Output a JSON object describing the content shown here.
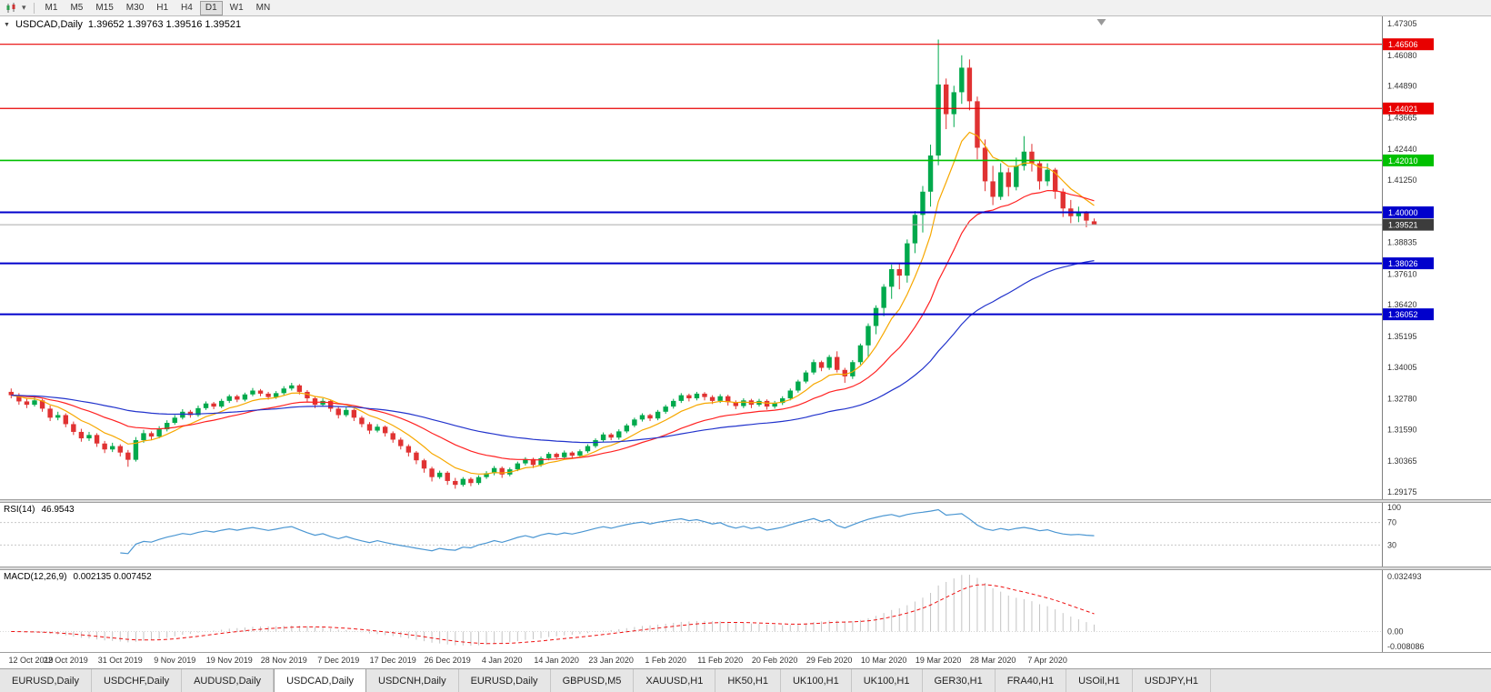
{
  "toolbar": {
    "timeframes": [
      "M1",
      "M5",
      "M15",
      "M30",
      "H1",
      "H4",
      "D1",
      "W1",
      "MN"
    ],
    "active": "D1"
  },
  "chart": {
    "title": "USDCAD,Daily",
    "ohlc": "1.39652 1.39763 1.39516 1.39521"
  },
  "chart_data": {
    "type": "candlestick",
    "symbol": "USDCAD",
    "timeframe": "Daily",
    "open": 1.39652,
    "high": 1.39763,
    "low": 1.39516,
    "close": 1.39521,
    "price_range": [
      1.29175,
      1.47305
    ],
    "axis_labels": [
      1.47305,
      1.4608,
      1.4489,
      1.43665,
      1.4244,
      1.4125,
      1.38835,
      1.3761,
      1.3642,
      1.35195,
      1.34005,
      1.3278,
      1.3159,
      1.30365,
      1.29175
    ],
    "colors": {
      "up": "#00a94c",
      "down": "#e03232"
    },
    "hlines": [
      {
        "value": 1.46506,
        "label": "1.46506",
        "color": "#e80000",
        "width": 1.2
      },
      {
        "value": 1.44021,
        "label": "1.44021",
        "color": "#e80000",
        "width": 1.2
      },
      {
        "value": 1.4201,
        "label": "1.42010",
        "color": "#00c000",
        "width": 1.6
      },
      {
        "value": 1.4,
        "label": "1.40000",
        "color": "#0000cc",
        "width": 2
      },
      {
        "value": 1.38026,
        "label": "1.38026",
        "color": "#0000cc",
        "width": 2
      },
      {
        "value": 1.36052,
        "label": "1.36052",
        "color": "#0000cc",
        "width": 2
      }
    ],
    "current_price": {
      "value": 1.39521,
      "label": "1.39521",
      "line_color": "#aaaaaa",
      "badge_color": "#3c3c3c"
    },
    "moving_averages": [
      {
        "name": "fast",
        "period": 8,
        "color": "#f7a800"
      },
      {
        "name": "medium",
        "period": 21,
        "color": "#ff2222"
      },
      {
        "name": "slow",
        "period": 55,
        "color": "#2233cc"
      }
    ],
    "label_every": 7,
    "date_labels": [
      "12 Oct 2019",
      "22 Oct 2019",
      "31 Oct 2019",
      "9 Nov 2019",
      "19 Nov 2019",
      "28 Nov 2019",
      "7 Dec 2019",
      "17 Dec 2019",
      "26 Dec 2019",
      "4 Jan 2020",
      "14 Jan 2020",
      "23 Jan 2020",
      "1 Feb 2020",
      "11 Feb 2020",
      "20 Feb 2020",
      "29 Feb 2020",
      "10 Mar 2020",
      "19 Mar 2020",
      "28 Mar 2020",
      "7 Apr 2020"
    ],
    "candles": [
      [
        1.3305,
        1.3318,
        1.328,
        1.3292
      ],
      [
        1.3292,
        1.33,
        1.3255,
        1.3268
      ],
      [
        1.3268,
        1.328,
        1.3242,
        1.3255
      ],
      [
        1.3255,
        1.3285,
        1.3248,
        1.3272
      ],
      [
        1.3272,
        1.3278,
        1.3228,
        1.324
      ],
      [
        1.324,
        1.3252,
        1.3192,
        1.3205
      ],
      [
        1.3205,
        1.3228,
        1.3195,
        1.3215
      ],
      [
        1.3215,
        1.3222,
        1.3168,
        1.318
      ],
      [
        1.318,
        1.319,
        1.3138,
        1.315
      ],
      [
        1.315,
        1.3162,
        1.3112,
        1.3125
      ],
      [
        1.3125,
        1.315,
        1.3115,
        1.3138
      ],
      [
        1.3138,
        1.3145,
        1.3092,
        1.3105
      ],
      [
        1.3105,
        1.3115,
        1.3068,
        1.3082
      ],
      [
        1.3082,
        1.3108,
        1.3072,
        1.3095
      ],
      [
        1.3095,
        1.3102,
        1.3055,
        1.307
      ],
      [
        1.307,
        1.308,
        1.3015,
        1.3042
      ],
      [
        1.3042,
        1.313,
        1.3035,
        1.3118
      ],
      [
        1.3118,
        1.3158,
        1.3108,
        1.3145
      ],
      [
        1.3145,
        1.3152,
        1.3118,
        1.3132
      ],
      [
        1.3132,
        1.3172,
        1.3125,
        1.316
      ],
      [
        1.316,
        1.3195,
        1.3152,
        1.3185
      ],
      [
        1.3185,
        1.3215,
        1.3178,
        1.3205
      ],
      [
        1.3205,
        1.3238,
        1.3198,
        1.3228
      ],
      [
        1.3228,
        1.3235,
        1.3205,
        1.3215
      ],
      [
        1.3215,
        1.3252,
        1.3208,
        1.3242
      ],
      [
        1.3242,
        1.3268,
        1.3235,
        1.326
      ],
      [
        1.326,
        1.3266,
        1.3238,
        1.3248
      ],
      [
        1.3248,
        1.3278,
        1.3242,
        1.327
      ],
      [
        1.327,
        1.3295,
        1.3262,
        1.3288
      ],
      [
        1.3288,
        1.3294,
        1.3265,
        1.3275
      ],
      [
        1.3275,
        1.3302,
        1.3268,
        1.3295
      ],
      [
        1.3295,
        1.332,
        1.3288,
        1.331
      ],
      [
        1.331,
        1.3316,
        1.3288,
        1.3298
      ],
      [
        1.3298,
        1.3305,
        1.3275,
        1.3285
      ],
      [
        1.3285,
        1.3308,
        1.3278,
        1.33
      ],
      [
        1.33,
        1.3327,
        1.3292,
        1.3318
      ],
      [
        1.3318,
        1.334,
        1.331,
        1.333
      ],
      [
        1.333,
        1.3335,
        1.3295,
        1.3305
      ],
      [
        1.3305,
        1.3312,
        1.3268,
        1.328
      ],
      [
        1.328,
        1.3288,
        1.3242,
        1.3255
      ],
      [
        1.3255,
        1.328,
        1.3248,
        1.327
      ],
      [
        1.327,
        1.3275,
        1.3228,
        1.324
      ],
      [
        1.324,
        1.3248,
        1.3202,
        1.3215
      ],
      [
        1.3215,
        1.3245,
        1.3208,
        1.3235
      ],
      [
        1.3235,
        1.324,
        1.3192,
        1.3205
      ],
      [
        1.3205,
        1.3212,
        1.3168,
        1.318
      ],
      [
        1.318,
        1.3188,
        1.3142,
        1.3155
      ],
      [
        1.3155,
        1.318,
        1.3148,
        1.317
      ],
      [
        1.317,
        1.3175,
        1.3132,
        1.3145
      ],
      [
        1.3145,
        1.3152,
        1.3108,
        1.312
      ],
      [
        1.312,
        1.3128,
        1.3082,
        1.3095
      ],
      [
        1.3095,
        1.3102,
        1.3055,
        1.307
      ],
      [
        1.307,
        1.3076,
        1.3025,
        1.304
      ],
      [
        1.304,
        1.3046,
        1.2992,
        1.3008
      ],
      [
        1.3008,
        1.3015,
        1.2958,
        1.2975
      ],
      [
        1.2975,
        1.3,
        1.2968,
        1.2992
      ],
      [
        1.2992,
        1.2998,
        1.2945,
        1.296
      ],
      [
        1.296,
        1.2972,
        1.293,
        1.2945
      ],
      [
        1.2945,
        1.2975,
        1.2938,
        1.2968
      ],
      [
        1.2968,
        1.2974,
        1.294,
        1.2952
      ],
      [
        1.2952,
        1.2982,
        1.2945,
        1.2975
      ],
      [
        1.2975,
        1.2998,
        1.2968,
        1.299
      ],
      [
        1.299,
        1.3018,
        1.2982,
        1.301
      ],
      [
        1.301,
        1.3016,
        1.2972,
        1.2985
      ],
      [
        1.2985,
        1.3012,
        1.2978,
        1.3005
      ],
      [
        1.3005,
        1.3035,
        1.2998,
        1.3028
      ],
      [
        1.3028,
        1.3052,
        1.302,
        1.3045
      ],
      [
        1.3045,
        1.305,
        1.301,
        1.3022
      ],
      [
        1.3022,
        1.3055,
        1.3015,
        1.3048
      ],
      [
        1.3048,
        1.3072,
        1.304,
        1.3065
      ],
      [
        1.3065,
        1.307,
        1.3042,
        1.3052
      ],
      [
        1.3052,
        1.3078,
        1.3045,
        1.307
      ],
      [
        1.307,
        1.3075,
        1.3046,
        1.3058
      ],
      [
        1.3058,
        1.3082,
        1.305,
        1.3075
      ],
      [
        1.3075,
        1.3102,
        1.3068,
        1.3095
      ],
      [
        1.3095,
        1.3125,
        1.3088,
        1.3118
      ],
      [
        1.3118,
        1.3148,
        1.311,
        1.314
      ],
      [
        1.314,
        1.3146,
        1.3118,
        1.3128
      ],
      [
        1.3128,
        1.316,
        1.312,
        1.3152
      ],
      [
        1.3152,
        1.3182,
        1.3145,
        1.3175
      ],
      [
        1.3175,
        1.3205,
        1.3168,
        1.3198
      ],
      [
        1.3198,
        1.3222,
        1.319,
        1.3215
      ],
      [
        1.3215,
        1.322,
        1.3192,
        1.3202
      ],
      [
        1.3202,
        1.3235,
        1.3195,
        1.3228
      ],
      [
        1.3228,
        1.3255,
        1.322,
        1.3248
      ],
      [
        1.3248,
        1.3278,
        1.324,
        1.327
      ],
      [
        1.327,
        1.33,
        1.3262,
        1.3292
      ],
      [
        1.3292,
        1.3298,
        1.3268,
        1.328
      ],
      [
        1.328,
        1.3305,
        1.3272,
        1.3298
      ],
      [
        1.3298,
        1.3304,
        1.3272,
        1.3285
      ],
      [
        1.3285,
        1.3292,
        1.3258,
        1.327
      ],
      [
        1.327,
        1.3296,
        1.3262,
        1.3288
      ],
      [
        1.3288,
        1.3294,
        1.3252,
        1.3265
      ],
      [
        1.3265,
        1.3272,
        1.3238,
        1.325
      ],
      [
        1.325,
        1.328,
        1.3242,
        1.3272
      ],
      [
        1.3272,
        1.3278,
        1.3242,
        1.3255
      ],
      [
        1.3255,
        1.3278,
        1.3248,
        1.327
      ],
      [
        1.327,
        1.3276,
        1.3236,
        1.3248
      ],
      [
        1.3248,
        1.327,
        1.324,
        1.3262
      ],
      [
        1.3262,
        1.3288,
        1.3254,
        1.328
      ],
      [
        1.328,
        1.3318,
        1.3272,
        1.331
      ],
      [
        1.331,
        1.3352,
        1.3302,
        1.3345
      ],
      [
        1.3345,
        1.3388,
        1.3338,
        1.338
      ],
      [
        1.338,
        1.343,
        1.3372,
        1.342
      ],
      [
        1.342,
        1.3426,
        1.3385,
        1.3398
      ],
      [
        1.3398,
        1.3448,
        1.339,
        1.344
      ],
      [
        1.344,
        1.3462,
        1.338,
        1.339
      ],
      [
        1.339,
        1.3398,
        1.334,
        1.3365
      ],
      [
        1.3365,
        1.3428,
        1.3355,
        1.342
      ],
      [
        1.342,
        1.3492,
        1.341,
        1.3485
      ],
      [
        1.3485,
        1.357,
        1.3442,
        1.356
      ],
      [
        1.356,
        1.364,
        1.3528,
        1.363
      ],
      [
        1.363,
        1.3722,
        1.3598,
        1.3712
      ],
      [
        1.3712,
        1.3798,
        1.3665,
        1.378
      ],
      [
        1.378,
        1.38,
        1.3702,
        1.3755
      ],
      [
        1.3755,
        1.3895,
        1.3728,
        1.388
      ],
      [
        1.388,
        1.4005,
        1.3842,
        1.399
      ],
      [
        1.399,
        1.4102,
        1.3922,
        1.408
      ],
      [
        1.408,
        1.4262,
        1.4022,
        1.422
      ],
      [
        1.422,
        1.4669,
        1.4182,
        1.4495
      ],
      [
        1.4495,
        1.4518,
        1.4322,
        1.438
      ],
      [
        1.438,
        1.449,
        1.433,
        1.4465
      ],
      [
        1.4465,
        1.4608,
        1.442,
        1.456
      ],
      [
        1.456,
        1.4592,
        1.4395,
        1.443
      ],
      [
        1.443,
        1.4448,
        1.4205,
        1.425
      ],
      [
        1.425,
        1.4282,
        1.4082,
        1.412
      ],
      [
        1.412,
        1.418,
        1.4028,
        1.406
      ],
      [
        1.406,
        1.419,
        1.4048,
        1.4155
      ],
      [
        1.4155,
        1.4172,
        1.4062,
        1.4098
      ],
      [
        1.4098,
        1.4212,
        1.4085,
        1.418
      ],
      [
        1.418,
        1.4295,
        1.4162,
        1.4235
      ],
      [
        1.4235,
        1.4265,
        1.4158,
        1.419
      ],
      [
        1.419,
        1.4202,
        1.4088,
        1.412
      ],
      [
        1.412,
        1.419,
        1.4102,
        1.4165
      ],
      [
        1.4165,
        1.4172,
        1.4052,
        1.408
      ],
      [
        1.408,
        1.4092,
        1.3982,
        1.4015
      ],
      [
        1.4015,
        1.4048,
        1.3958,
        1.3985
      ],
      [
        1.3985,
        1.4022,
        1.3962,
        1.3998
      ],
      [
        1.3998,
        1.4005,
        1.3942,
        1.3968
      ],
      [
        1.39652,
        1.39763,
        1.39516,
        1.39521
      ]
    ],
    "rsi": {
      "label": "RSI(14)",
      "value": "46.9543",
      "period": 14,
      "color": "#4a96d2",
      "upper_level": 70,
      "lower_level": 30,
      "axis_labels": [
        "100",
        "70",
        "30"
      ]
    },
    "macd": {
      "label": "MACD(12,26,9)",
      "values_text": "0.002135 0.007452",
      "fast_period": 12,
      "slow_period": 26,
      "signal_period": 9,
      "hist_color": "#c4c4c4",
      "signal_color": "#ee1111",
      "axis_labels": [
        "0.032493",
        "0.00",
        "-0.008086"
      ]
    }
  },
  "tabs": {
    "items": [
      "EURUSD,Daily",
      "USDCHF,Daily",
      "AUDUSD,Daily",
      "USDCAD,Daily",
      "USDCNH,Daily",
      "EURUSD,Daily",
      "GBPUSD,M5",
      "XAUUSD,H1",
      "HK50,H1",
      "UK100,H1",
      "UK100,H1",
      "GER30,H1",
      "FRA40,H1",
      "USOil,H1",
      "USDJPY,H1"
    ],
    "active_index": 3
  }
}
